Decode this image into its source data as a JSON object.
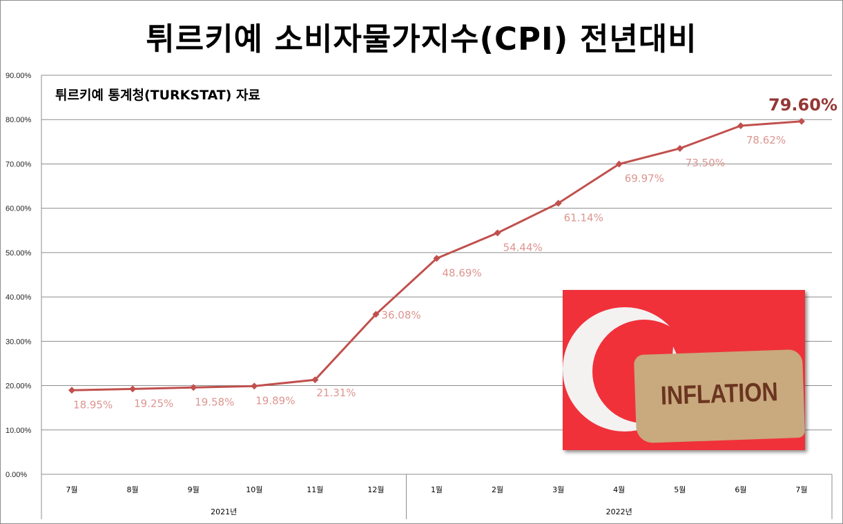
{
  "title": "튀르키예 소비자물가지수(CPI) 전년대비",
  "subtitle": "튀르키예 통계청(TURKSTAT) 자료",
  "highlight_label": "79.60%",
  "photo": {
    "caption": "INFLATION",
    "colors": {
      "flag_red": "#f0313a",
      "cardboard": "#c9a97e",
      "text": "#6a3520"
    }
  },
  "colors": {
    "line": "#c0504d",
    "data_label": "#dc9590",
    "highlight": "#953735",
    "grid": "#8c8c8c"
  },
  "chart_data": {
    "type": "line",
    "title": "튀르키예 소비자물가지수(CPI) 전년대비",
    "subtitle": "튀르키예 통계청(TURKSTAT) 자료",
    "xlabel": "",
    "ylabel": "",
    "ylim": [
      0,
      90
    ],
    "yticks": [
      "0.00%",
      "10.00%",
      "20.00%",
      "30.00%",
      "40.00%",
      "50.00%",
      "60.00%",
      "70.00%",
      "80.00%",
      "90.00%"
    ],
    "grid": true,
    "legend": "none",
    "categories": [
      "7월",
      "8월",
      "9월",
      "10월",
      "11월",
      "12월",
      "1월",
      "2월",
      "3월",
      "4월",
      "5월",
      "6월",
      "7월"
    ],
    "category_groups": [
      {
        "label": "2021년",
        "months": [
          "7월",
          "8월",
          "9월",
          "10월",
          "11월",
          "12월"
        ]
      },
      {
        "label": "2022년",
        "months": [
          "1월",
          "2월",
          "3월",
          "4월",
          "5월",
          "6월",
          "7월"
        ]
      }
    ],
    "series": [
      {
        "name": "CPI 전년대비",
        "values": [
          18.95,
          19.25,
          19.58,
          19.89,
          21.31,
          36.08,
          48.69,
          54.44,
          61.14,
          69.97,
          73.5,
          78.62,
          79.6
        ],
        "labels": [
          "18.95%",
          "19.25%",
          "19.58%",
          "19.89%",
          "21.31%",
          "36.08%",
          "48.69%",
          "54.44%",
          "61.14%",
          "69.97%",
          "73.50%",
          "78.62%",
          "79.60%"
        ]
      }
    ],
    "annotations": [
      "79.60%"
    ]
  }
}
